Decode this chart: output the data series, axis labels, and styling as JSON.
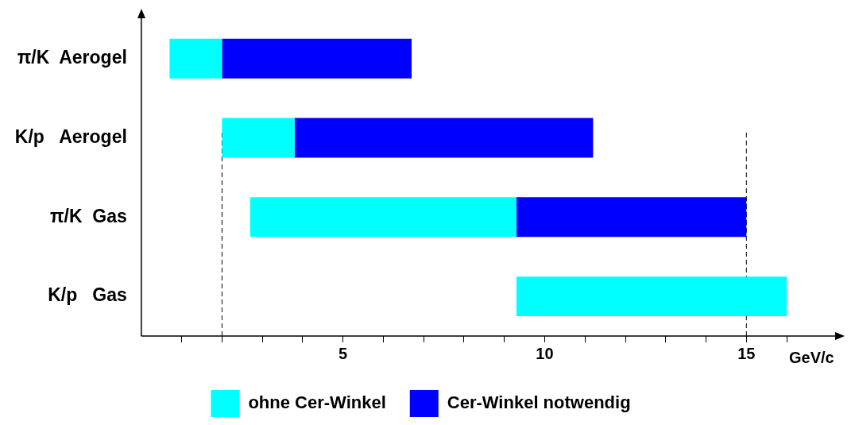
{
  "chart_data": {
    "type": "bar",
    "orientation": "horizontal",
    "categories": [
      "π/K  Aerogel",
      "K/p   Aerogel",
      "π/K  Gas",
      "K/p   Gas"
    ],
    "series": [
      {
        "name": "ohne Cer-Winkel",
        "color": "#00ffff",
        "base": [
          0.7,
          2.0,
          2.7,
          9.3
        ],
        "values": [
          1.3,
          1.8,
          6.6,
          6.7
        ]
      },
      {
        "name": "Cer-Winkel notwendig",
        "color": "#0000ff",
        "base": [
          2.0,
          3.8,
          9.3,
          null
        ],
        "values": [
          4.7,
          7.4,
          5.7,
          null
        ]
      }
    ],
    "xlabel": "GeV/c",
    "xlim": [
      0,
      17.2
    ],
    "xticks": [
      {
        "value": 1,
        "label": null
      },
      {
        "value": 2,
        "label": null
      },
      {
        "value": 3,
        "label": null
      },
      {
        "value": 4,
        "label": null
      },
      5,
      {
        "value": 6,
        "label": null
      },
      {
        "value": 7,
        "label": null
      },
      {
        "value": 8,
        "label": null
      },
      {
        "value": 9,
        "label": null
      },
      10,
      {
        "value": 11,
        "label": null
      },
      {
        "value": 12,
        "label": null
      },
      {
        "value": 13,
        "label": null
      },
      {
        "value": 14,
        "label": null
      },
      15,
      {
        "value": 16,
        "label": null
      }
    ],
    "ref_lines": [
      {
        "axis": "x",
        "value": 2,
        "line_style": "dashed"
      },
      {
        "axis": "x",
        "value": 15,
        "line_style": "dashed"
      }
    ],
    "grid": false,
    "legend": "bottom"
  }
}
